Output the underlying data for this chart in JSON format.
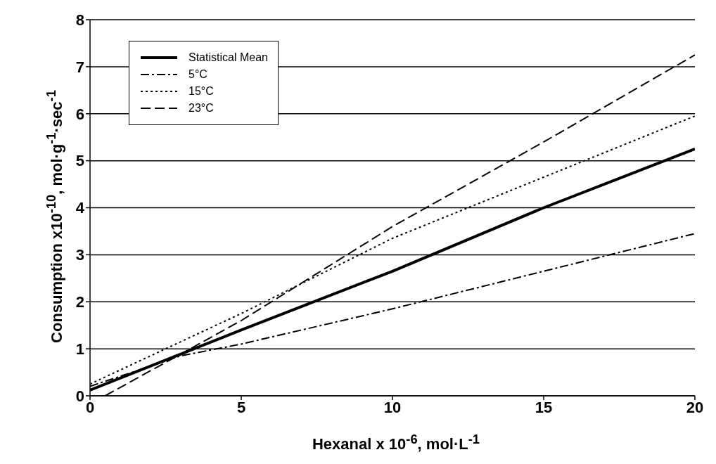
{
  "chart_data": {
    "type": "line",
    "xlabel": "Hexanal x 10$^{-6}$, mol·L$^{-1}$",
    "ylabel": "Consumption x10$^{-10}$, mol·g$^{-1}$·sec$^{-1}$",
    "xlim": [
      0,
      20
    ],
    "xticks": [
      0,
      5,
      10,
      15,
      20
    ],
    "ylim": [
      0,
      8
    ],
    "yticks": [
      0,
      1,
      2,
      3,
      4,
      5,
      6,
      7,
      8
    ],
    "grid": "y",
    "legend": "top left",
    "marker": "none",
    "series": [
      {
        "name": "Statistical Mean",
        "color": "#000000",
        "line_style": "solid",
        "x": [
          0,
          5,
          10,
          15,
          20
        ],
        "values": [
          0.12,
          1.4,
          2.65,
          4.0,
          5.25
        ]
      },
      {
        "name": "5°C",
        "color": "#000000",
        "line_style": "dashdot",
        "x": [
          0,
          3,
          5,
          10,
          15,
          20
        ],
        "values": [
          0.2,
          0.85,
          1.1,
          1.85,
          2.65,
          3.45
        ]
      },
      {
        "name": "15°C",
        "color": "#000000",
        "line_style": "dotted",
        "x": [
          0,
          5,
          10,
          15,
          20
        ],
        "values": [
          0.25,
          1.75,
          3.35,
          4.65,
          5.95
        ]
      },
      {
        "name": "23°C",
        "color": "#000000",
        "line_style": "dashed",
        "x": [
          0.5,
          5,
          10,
          15,
          20
        ],
        "values": [
          0,
          1.6,
          3.6,
          5.4,
          7.25
        ]
      }
    ]
  }
}
